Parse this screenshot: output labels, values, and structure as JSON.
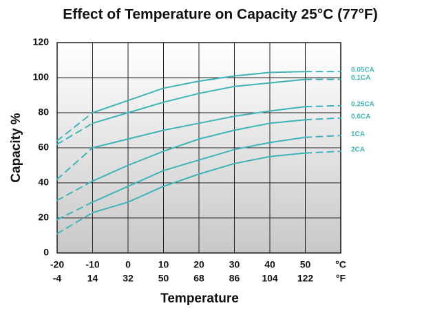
{
  "chart_data": {
    "type": "line",
    "title": "Effect of Temperature on Capacity 25°C (77°F)",
    "y_label": "Capacity %",
    "x_label": "Temperature",
    "x_unit": "°C",
    "x2_unit": "°F",
    "x": [
      -20,
      -10,
      0,
      10,
      20,
      30,
      40,
      50,
      60
    ],
    "xlim": [
      -20,
      60
    ],
    "xticks": [
      -20,
      -10,
      0,
      10,
      20,
      30,
      40,
      50
    ],
    "x2ticks": [
      -4,
      14,
      32,
      50,
      68,
      86,
      104,
      122
    ],
    "ylim": [
      0,
      120
    ],
    "yticks": [
      0,
      20,
      40,
      60,
      80,
      100,
      120
    ],
    "grid": true,
    "color": "#3db4b8",
    "dashed": [
      true,
      false,
      false,
      false,
      false,
      false,
      false,
      true
    ],
    "series": [
      {
        "name": "0.05CA",
        "values": [
          64,
          80,
          87,
          94,
          98,
          101,
          103,
          103.5,
          103.5
        ]
      },
      {
        "name": "0.1CA",
        "values": [
          62,
          74,
          80,
          86,
          91,
          95,
          97,
          99,
          99
        ]
      },
      {
        "name": "0.25CA",
        "values": [
          42,
          60,
          65,
          70,
          74,
          78,
          81,
          83.5,
          84
        ]
      },
      {
        "name": "0.6CA",
        "values": [
          30,
          41,
          50,
          58,
          65,
          70,
          74,
          76,
          77
        ]
      },
      {
        "name": "1CA",
        "values": [
          19,
          29,
          38,
          47,
          53,
          59,
          63,
          66,
          67
        ]
      },
      {
        "name": "2CA",
        "values": [
          11,
          23,
          29,
          38,
          45,
          51,
          55,
          57,
          58
        ]
      }
    ]
  }
}
